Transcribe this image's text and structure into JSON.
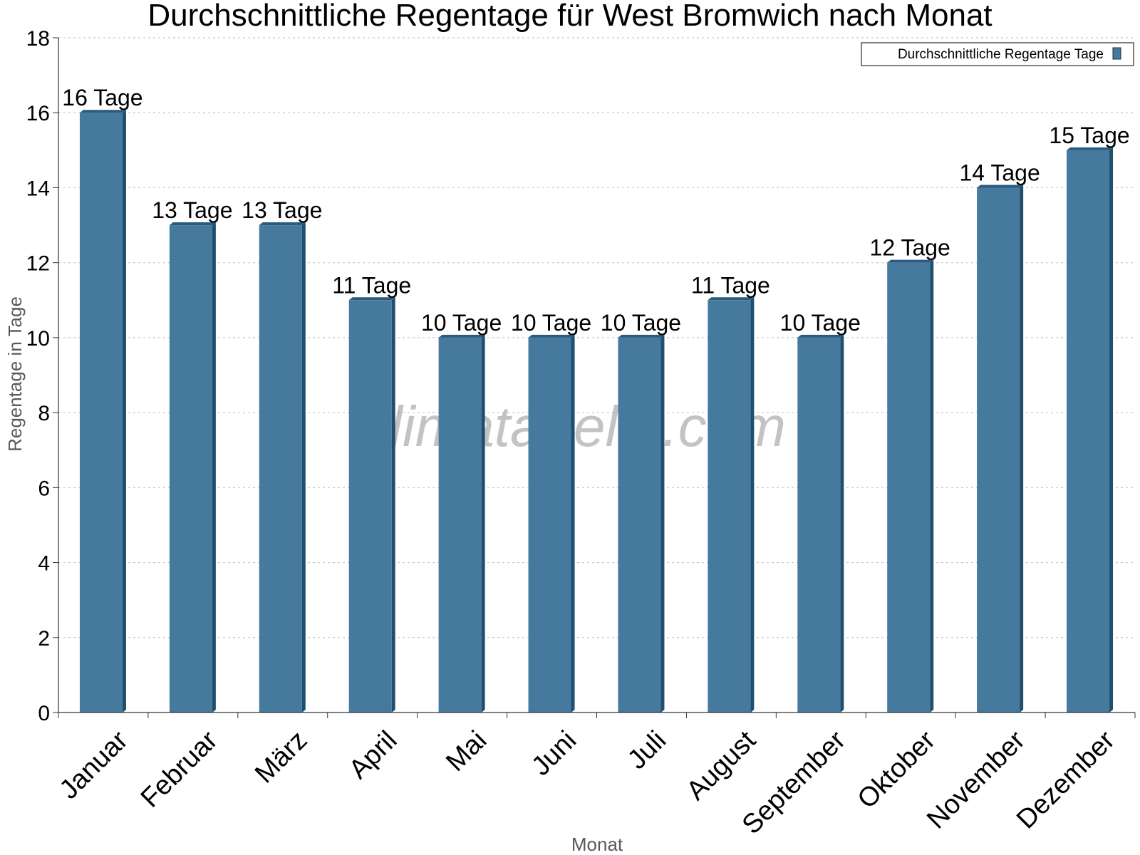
{
  "title": "Durchschnittliche Regentage für West Bromwich nach Monat",
  "watermark": "klimatabelle.com",
  "colors": {
    "bar_front": "#457a9e",
    "bar_side": "#1f4e6e",
    "bar_top": "#2a5a7c",
    "grid": "#c8c8c8",
    "axis": "#333333"
  },
  "chart_data": {
    "type": "bar",
    "title": "Durchschnittliche Regentage für West Bromwich nach Monat",
    "xlabel": "Monat",
    "ylabel": "Regentage in Tage",
    "categories": [
      "Januar",
      "Februar",
      "März",
      "April",
      "Mai",
      "Juni",
      "Juli",
      "August",
      "September",
      "Oktober",
      "November",
      "Dezember"
    ],
    "series": [
      {
        "name": "Durchschnittliche Regentage Tage",
        "values": [
          16,
          13,
          13,
          11,
          10,
          10,
          10,
          11,
          10,
          12,
          14,
          15
        ]
      }
    ],
    "value_labels": [
      "16 Tage",
      "13 Tage",
      "13 Tage",
      "11 Tage",
      "10 Tage",
      "10 Tage",
      "10 Tage",
      "11 Tage",
      "10 Tage",
      "12 Tage",
      "14 Tage",
      "15 Tage"
    ],
    "ylim": [
      0,
      18
    ],
    "yticks": [
      0,
      2,
      4,
      6,
      8,
      10,
      12,
      14,
      16,
      18
    ],
    "grid": true,
    "legend_position": "top-right"
  }
}
